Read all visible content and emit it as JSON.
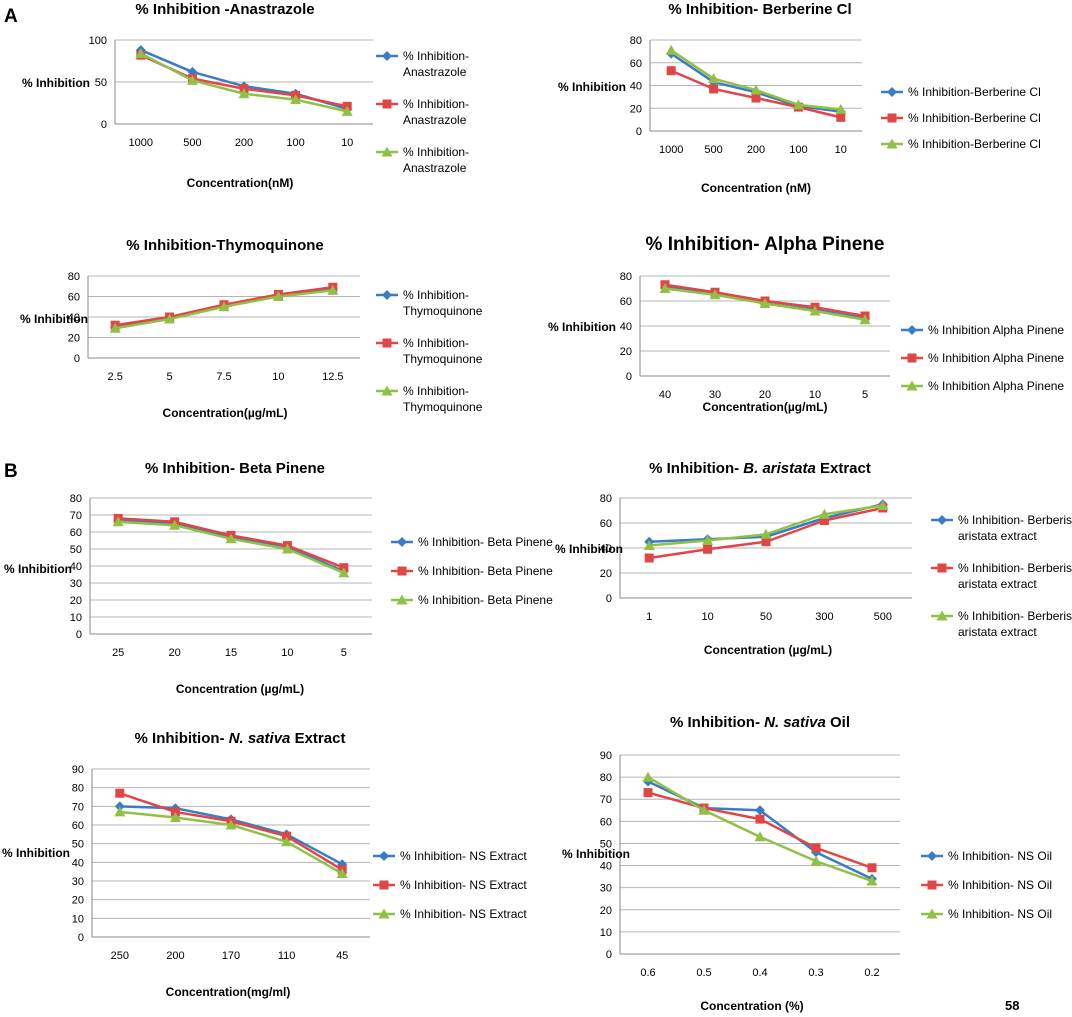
{
  "colors": {
    "series1": "#3a7dc4",
    "series2": "#e04646",
    "series3": "#90c046",
    "grid": "#b4b4b4",
    "axis": "#888888",
    "page_number": "#808080"
  },
  "section_labels": {
    "a": "A",
    "b": "B"
  },
  "page_number": "58",
  "chart_data": [
    {
      "id": "anastrazole",
      "type": "line",
      "section": "A",
      "title": "% Inhibition -Anastrazole",
      "xlabel": "Concentration(nM)",
      "ylabel": "% Inhibition",
      "categories": [
        "1000",
        "500",
        "200",
        "100",
        "10"
      ],
      "ylim": [
        0,
        100
      ],
      "yticks": [
        0,
        50,
        100
      ],
      "grid": true,
      "legend": [
        "% Inhibition-",
        "Anastrazole"
      ],
      "legend_position": "right",
      "series": [
        {
          "name": "% Inhibition-Anastrazole",
          "marker": "diamond",
          "values": [
            88,
            62,
            45,
            36,
            18
          ]
        },
        {
          "name": "% Inhibition-Anastrazole",
          "marker": "square",
          "values": [
            82,
            54,
            42,
            34,
            21
          ]
        },
        {
          "name": "% Inhibition-Anastrazole",
          "marker": "triangle",
          "values": [
            84,
            52,
            36,
            29,
            15
          ]
        }
      ]
    },
    {
      "id": "berberine",
      "type": "line",
      "section": "A",
      "title": "% Inhibition- Berberine Cl",
      "xlabel": "Concentration (nM)",
      "ylabel": "% Inhibition",
      "categories": [
        "1000",
        "500",
        "200",
        "100",
        "10"
      ],
      "ylim": [
        0,
        80
      ],
      "yticks": [
        0,
        20,
        40,
        60,
        80
      ],
      "grid": true,
      "legend": [
        "% Inhibition-Berberine Cl"
      ],
      "legend_position": "right",
      "series": [
        {
          "name": "% Inhibition-Berberine Cl",
          "marker": "diamond",
          "values": [
            68,
            43,
            34,
            22,
            17
          ]
        },
        {
          "name": "% Inhibition-Berberine Cl",
          "marker": "square",
          "values": [
            53,
            37,
            29,
            21,
            12
          ]
        },
        {
          "name": "% Inhibition-Berberine Cl",
          "marker": "triangle",
          "values": [
            71,
            46,
            36,
            23,
            19
          ]
        }
      ]
    },
    {
      "id": "thymoquinone",
      "type": "line",
      "section": "A",
      "title": "% Inhibition-Thymoquinone",
      "xlabel": "Concentration(µg/mL)",
      "ylabel": "% Inhibition",
      "categories": [
        "2.5",
        "5",
        "7.5",
        "10",
        "12.5"
      ],
      "ylim": [
        0,
        80
      ],
      "yticks": [
        0,
        20,
        40,
        60,
        80
      ],
      "grid": true,
      "legend": [
        "% Inhibition-",
        "Thymoquinone"
      ],
      "legend_position": "right",
      "series": [
        {
          "name": "% Inhibition-Thymoquinone",
          "marker": "diamond",
          "values": [
            30,
            39,
            51,
            61,
            67
          ]
        },
        {
          "name": "% Inhibition-Thymoquinone",
          "marker": "square",
          "values": [
            32,
            40,
            52,
            62,
            69
          ]
        },
        {
          "name": "% Inhibition-Thymoquinone",
          "marker": "triangle",
          "values": [
            29,
            38,
            50,
            60,
            66
          ]
        }
      ]
    },
    {
      "id": "alpha_pinene",
      "type": "line",
      "section": "A",
      "title": "% Inhibition- Alpha Pinene",
      "xlabel": "Concentration(µg/mL)",
      "ylabel": "% Inhibition",
      "categories": [
        "40",
        "30",
        "20",
        "10",
        "5"
      ],
      "ylim": [
        0,
        80
      ],
      "yticks": [
        0,
        20,
        40,
        60,
        80
      ],
      "grid": true,
      "legend": [
        "% Inhibition Alpha Pinene"
      ],
      "legend_position": "right",
      "series": [
        {
          "name": "% Inhibition Alpha Pinene",
          "marker": "diamond",
          "values": [
            71,
            66,
            58,
            53,
            46
          ]
        },
        {
          "name": "% Inhibition Alpha Pinene",
          "marker": "square",
          "values": [
            73,
            67,
            60,
            55,
            48
          ]
        },
        {
          "name": "% Inhibition Alpha Pinene",
          "marker": "triangle",
          "values": [
            70,
            65,
            58,
            52,
            45
          ]
        }
      ]
    },
    {
      "id": "beta_pinene",
      "type": "line",
      "section": "B",
      "title": "% Inhibition- Beta Pinene",
      "xlabel": "Concentration (µg/mL)",
      "ylabel": "% Inhibition",
      "categories": [
        "25",
        "20",
        "15",
        "10",
        "5"
      ],
      "ylim": [
        0,
        80
      ],
      "yticks": [
        0,
        10,
        20,
        30,
        40,
        50,
        60,
        70,
        80
      ],
      "grid": true,
      "legend": [
        "% Inhibition- Beta Pinene"
      ],
      "legend_position": "right",
      "series": [
        {
          "name": "% Inhibition- Beta Pinene",
          "marker": "diamond",
          "values": [
            67,
            65,
            57,
            51,
            37
          ]
        },
        {
          "name": "% Inhibition- Beta Pinene",
          "marker": "square",
          "values": [
            68,
            66,
            58,
            52,
            39
          ]
        },
        {
          "name": "% Inhibition- Beta Pinene",
          "marker": "triangle",
          "values": [
            66,
            64,
            56,
            50,
            36
          ]
        }
      ]
    },
    {
      "id": "b_aristata",
      "type": "line",
      "section": "B",
      "title": "% Inhibition- ",
      "title_italic": "B. aristata",
      "title_suffix": " Extract",
      "xlabel": "Concentration (µg/mL)",
      "ylabel": "% Inhibition",
      "categories": [
        "1",
        "10",
        "50",
        "300",
        "500"
      ],
      "ylim": [
        0,
        80
      ],
      "yticks": [
        0,
        20,
        40,
        60,
        80
      ],
      "grid": true,
      "legend": [
        "% Inhibition- Berberis",
        "aristata extract"
      ],
      "legend_position": "right",
      "series": [
        {
          "name": "% Inhibition- Berberis aristata extract",
          "marker": "diamond",
          "values": [
            45,
            47,
            49,
            64,
            75
          ]
        },
        {
          "name": "% Inhibition- Berberis aristata extract",
          "marker": "square",
          "values": [
            32,
            39,
            45,
            62,
            72
          ]
        },
        {
          "name": "% Inhibition- Berberis aristata extract",
          "marker": "triangle",
          "values": [
            42,
            46,
            51,
            67,
            74
          ]
        }
      ]
    },
    {
      "id": "ns_extract",
      "type": "line",
      "section": "B",
      "title": "% Inhibition- ",
      "title_italic": "N. sativa",
      "title_suffix": " Extract",
      "xlabel": "Concentration(mg/ml)",
      "ylabel": "% Inhibition",
      "categories": [
        "250",
        "200",
        "170",
        "110",
        "45"
      ],
      "ylim": [
        0,
        90
      ],
      "yticks": [
        0,
        10,
        20,
        30,
        40,
        50,
        60,
        70,
        80,
        90
      ],
      "grid": true,
      "legend": [
        "% Inhibition- NS Extract"
      ],
      "legend_position": "right",
      "series": [
        {
          "name": "% Inhibition- NS Extract",
          "marker": "diamond",
          "values": [
            70,
            69,
            63,
            55,
            39
          ]
        },
        {
          "name": "% Inhibition- NS Extract",
          "marker": "square",
          "values": [
            77,
            67,
            62,
            54,
            36
          ]
        },
        {
          "name": "% Inhibition- NS Extract",
          "marker": "triangle",
          "values": [
            67,
            64,
            60,
            51,
            34
          ]
        }
      ]
    },
    {
      "id": "ns_oil",
      "type": "line",
      "section": "B",
      "title": "% Inhibition- ",
      "title_italic": "N. sativa",
      "title_suffix": " Oil",
      "xlabel": "Concentration (%)",
      "ylabel": "% Inhibition",
      "categories": [
        "0.6",
        "0.5",
        "0.4",
        "0.3",
        "0.2"
      ],
      "ylim": [
        0,
        90
      ],
      "yticks": [
        0,
        10,
        20,
        30,
        40,
        50,
        60,
        70,
        80,
        90
      ],
      "grid": true,
      "legend": [
        "% Inhibition- NS Oil"
      ],
      "legend_position": "right",
      "series": [
        {
          "name": "% Inhibition- NS Oil",
          "marker": "diamond",
          "values": [
            78,
            66,
            65,
            46,
            34
          ]
        },
        {
          "name": "% Inhibition- NS Oil",
          "marker": "square",
          "values": [
            73,
            66,
            61,
            48,
            39
          ]
        },
        {
          "name": "% Inhibition- NS Oil",
          "marker": "triangle",
          "values": [
            80,
            65,
            53,
            42,
            33
          ]
        }
      ]
    }
  ]
}
